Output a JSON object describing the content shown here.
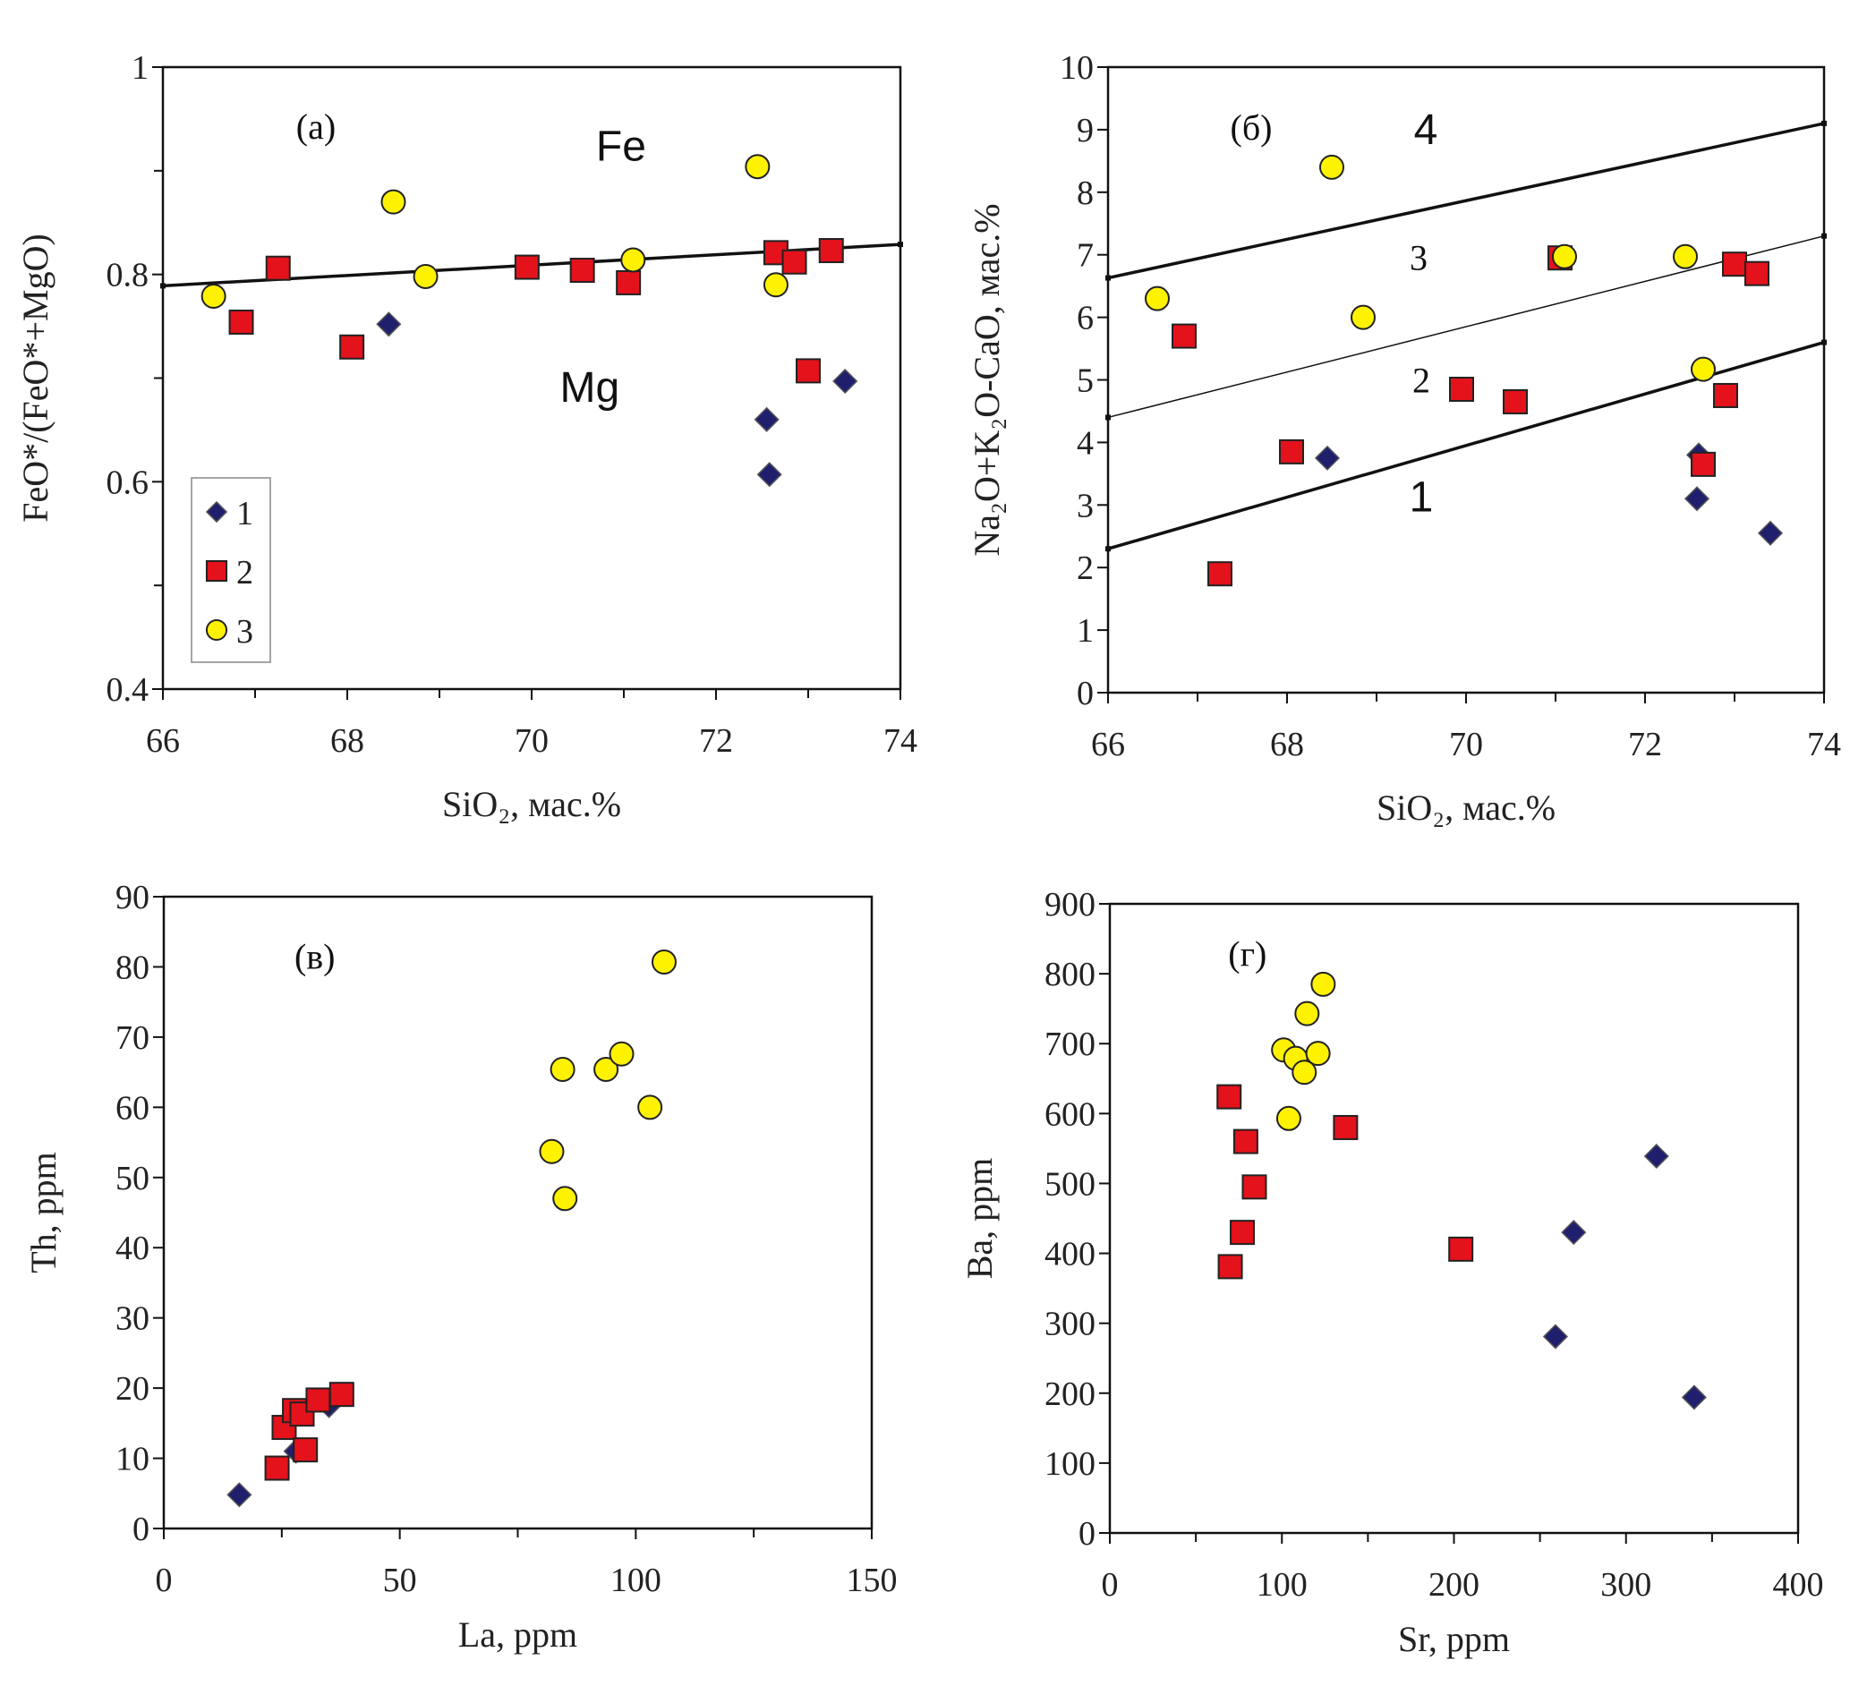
{
  "colors": {
    "series1": "#1f1f6e",
    "series2": "#e3121b",
    "series3": "#fff200",
    "marker_edge": "#222222",
    "line": "#111111"
  },
  "chart_data": [
    {
      "type": "scatter",
      "panel": "a",
      "xlabel": "SiO₂, мас.%",
      "ylabel": "FeO*/(FeO*+MgO)",
      "xlim": [
        66,
        74
      ],
      "ylim": [
        0.4,
        1
      ],
      "xticks": [
        66,
        68,
        70,
        72,
        74
      ],
      "yticks": [
        0.4,
        0.6,
        0.8,
        1
      ],
      "xtick_labels": [
        "66",
        "68",
        "70",
        "72",
        "74"
      ],
      "ytick_labels": [
        "0.4",
        "0.6",
        "0.8",
        "1"
      ],
      "xminor": [
        67,
        69,
        71,
        73
      ],
      "yminor": [
        0.5,
        0.7,
        0.9
      ],
      "grid": false,
      "legend": {
        "placement": "bottom-left",
        "entries": [
          "1",
          "2",
          "3"
        ]
      },
      "series": [
        {
          "name": "1",
          "marker": "diamond",
          "color": "#1f1f6e",
          "points": [
            [
              68.45,
              0.752
            ],
            [
              72.55,
              0.66
            ],
            [
              72.58,
              0.607
            ],
            [
              73.4,
              0.697
            ]
          ]
        },
        {
          "name": "2",
          "marker": "square",
          "color": "#e3121b",
          "points": [
            [
              66.85,
              0.754
            ],
            [
              67.25,
              0.806
            ],
            [
              68.05,
              0.73
            ],
            [
              69.95,
              0.807
            ],
            [
              70.55,
              0.804
            ],
            [
              71.05,
              0.792
            ],
            [
              72.65,
              0.821
            ],
            [
              72.85,
              0.812
            ],
            [
              73.0,
              0.707
            ],
            [
              73.25,
              0.823
            ]
          ]
        },
        {
          "name": "3",
          "marker": "circle",
          "color": "#fff200",
          "points": [
            [
              66.55,
              0.779
            ],
            [
              68.5,
              0.87
            ],
            [
              68.85,
              0.798
            ],
            [
              71.1,
              0.814
            ],
            [
              72.45,
              0.904
            ],
            [
              72.65,
              0.79
            ]
          ]
        }
      ],
      "lines": [
        {
          "from": [
            66,
            0.789
          ],
          "to": [
            74,
            0.829
          ],
          "weight": "bold"
        }
      ],
      "annotations": [
        {
          "text": "(а)",
          "at": [
            67.66,
            0.943
          ],
          "style": "serif"
        },
        {
          "text": "Fe",
          "at": [
            70.97,
            0.922
          ],
          "style": "sans"
        },
        {
          "text": "Mg",
          "at": [
            70.63,
            0.689
          ],
          "style": "sans"
        }
      ]
    },
    {
      "type": "scatter",
      "panel": "б",
      "xlabel": "SiO₂, мас.%",
      "ylabel": "Na₂O+K₂O-CaO, мас.%",
      "xlim": [
        66,
        74
      ],
      "ylim": [
        0,
        10
      ],
      "xticks": [
        66,
        68,
        70,
        72,
        74
      ],
      "yticks": [
        0,
        1,
        2,
        3,
        4,
        5,
        6,
        7,
        8,
        9,
        10
      ],
      "xtick_labels": [
        "66",
        "68",
        "70",
        "72",
        "74"
      ],
      "ytick_labels": [
        "0",
        "1",
        "2",
        "3",
        "4",
        "5",
        "6",
        "7",
        "8",
        "9",
        "10"
      ],
      "xminor": [
        67,
        69,
        71,
        73
      ],
      "yminor": [],
      "grid": false,
      "series": [
        {
          "name": "1",
          "marker": "diamond",
          "color": "#1f1f6e",
          "points": [
            [
              68.45,
              3.75
            ],
            [
              72.6,
              3.8
            ],
            [
              72.58,
              3.1
            ],
            [
              73.4,
              2.55
            ]
          ]
        },
        {
          "name": "2",
          "marker": "square",
          "color": "#e3121b",
          "points": [
            [
              66.85,
              5.7
            ],
            [
              67.25,
              1.9
            ],
            [
              68.05,
              3.85
            ],
            [
              69.95,
              4.85
            ],
            [
              70.55,
              4.65
            ],
            [
              71.05,
              6.95
            ],
            [
              72.65,
              3.65
            ],
            [
              72.9,
              4.75
            ],
            [
              73.0,
              6.85
            ],
            [
              73.25,
              6.7
            ]
          ]
        },
        {
          "name": "3",
          "marker": "circle",
          "color": "#fff200",
          "points": [
            [
              66.55,
              6.3
            ],
            [
              68.5,
              8.4
            ],
            [
              68.85,
              6.0
            ],
            [
              71.1,
              6.97
            ],
            [
              72.45,
              6.97
            ],
            [
              72.65,
              5.17
            ]
          ]
        }
      ],
      "lines": [
        {
          "from": [
            66,
            6.63
          ],
          "to": [
            74,
            9.1
          ],
          "weight": "bold"
        },
        {
          "from": [
            66,
            4.4
          ],
          "to": [
            74,
            7.3
          ],
          "weight": "thin"
        },
        {
          "from": [
            66,
            2.3
          ],
          "to": [
            74,
            5.6
          ],
          "weight": "bold"
        }
      ],
      "annotations": [
        {
          "text": "(б)",
          "at": [
            67.6,
            9.04
          ],
          "style": "serif"
        },
        {
          "text": "4",
          "at": [
            69.55,
            8.97
          ],
          "style": "sans"
        },
        {
          "text": "3",
          "at": [
            69.47,
            6.96
          ],
          "style": "serif"
        },
        {
          "text": "2",
          "at": [
            69.5,
            5.0
          ],
          "style": "serif"
        },
        {
          "text": "1",
          "at": [
            69.5,
            3.1
          ],
          "style": "sans"
        }
      ]
    },
    {
      "type": "scatter",
      "panel": "в",
      "xlabel": "La, ppm",
      "ylabel": "Th, ppm",
      "xlim": [
        0,
        150
      ],
      "ylim": [
        0,
        90
      ],
      "xticks": [
        0,
        50,
        100,
        150
      ],
      "yticks": [
        0,
        10,
        20,
        30,
        40,
        50,
        60,
        70,
        80,
        90
      ],
      "xtick_labels": [
        "0",
        "50",
        "100",
        "150"
      ],
      "ytick_labels": [
        "0",
        "10",
        "20",
        "30",
        "40",
        "50",
        "60",
        "70",
        "80",
        "90"
      ],
      "xminor": [
        25,
        75,
        125
      ],
      "yminor": [],
      "grid": false,
      "series": [
        {
          "name": "1",
          "marker": "diamond",
          "color": "#1f1f6e",
          "points": [
            [
              16,
              4.8
            ],
            [
              28,
              11
            ],
            [
              35,
              17.5
            ]
          ]
        },
        {
          "name": "2",
          "marker": "square",
          "color": "#e3121b",
          "points": [
            [
              24,
              8.6
            ],
            [
              25.5,
              14.4
            ],
            [
              27.7,
              16.8
            ],
            [
              30,
              11.2
            ],
            [
              29.3,
              16.3
            ],
            [
              32.7,
              18.3
            ],
            [
              37.7,
              19.1
            ]
          ]
        },
        {
          "name": "3",
          "marker": "circle",
          "color": "#fff200",
          "points": [
            [
              82.2,
              53.7
            ],
            [
              84.5,
              65.4
            ],
            [
              85,
              47
            ],
            [
              93.7,
              65.4
            ],
            [
              97,
              67.6
            ],
            [
              103,
              60
            ],
            [
              106,
              80.7
            ]
          ]
        }
      ],
      "lines": [],
      "annotations": [
        {
          "text": "(в)",
          "at": [
            32,
            81.5
          ],
          "style": "serif"
        }
      ]
    },
    {
      "type": "scatter",
      "panel": "г",
      "xlabel": "Sr, ppm",
      "ylabel": "Ba, ppm",
      "xlim": [
        0,
        400
      ],
      "ylim": [
        0,
        900
      ],
      "xticks": [
        0,
        100,
        200,
        300,
        400
      ],
      "yticks": [
        0,
        100,
        200,
        300,
        400,
        500,
        600,
        700,
        800,
        900
      ],
      "xtick_labels": [
        "0",
        "100",
        "200",
        "300",
        "400"
      ],
      "ytick_labels": [
        "0",
        "100",
        "200",
        "300",
        "400",
        "500",
        "600",
        "700",
        "800",
        "900"
      ],
      "xminor": [
        50,
        150,
        250,
        350
      ],
      "yminor": [],
      "grid": false,
      "series": [
        {
          "name": "1",
          "marker": "diamond",
          "color": "#1f1f6e",
          "points": [
            [
              317.7,
              539
            ],
            [
              269.6,
              430
            ],
            [
              259,
              281
            ],
            [
              339.6,
              194
            ]
          ]
        },
        {
          "name": "2",
          "marker": "square",
          "color": "#e3121b",
          "points": [
            [
              69.3,
              624
            ],
            [
              79,
              560
            ],
            [
              84,
              495
            ],
            [
              77,
              430
            ],
            [
              70,
              381
            ],
            [
              137,
              580
            ],
            [
              204,
              406
            ]
          ]
        },
        {
          "name": "3",
          "marker": "circle",
          "color": "#fff200",
          "points": [
            [
              124,
              785
            ],
            [
              114.6,
              743
            ],
            [
              101,
              691
            ],
            [
              108,
              679
            ],
            [
              121,
              686
            ],
            [
              113,
              659
            ],
            [
              104,
              593
            ]
          ]
        }
      ],
      "lines": [],
      "annotations": [
        {
          "text": "(г)",
          "at": [
            80,
            829
          ],
          "style": "serif"
        }
      ]
    }
  ]
}
